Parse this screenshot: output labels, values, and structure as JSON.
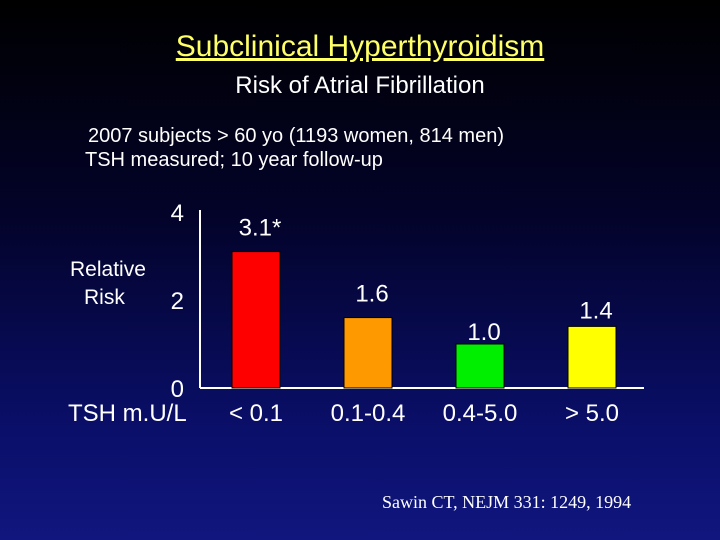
{
  "title": "Subclinical Hyperthyroidism",
  "subtitle": "Risk of Atrial Fibrillation",
  "description": [
    "2007 subjects > 60 yo (1193 women, 814 men)",
    "TSH measured; 10 year follow-up"
  ],
  "y_axis_label_lines": [
    "Relative",
    "Risk"
  ],
  "x_axis_label": "TSH m.U/L",
  "citation": "Sawin CT, NEJM 331: 1249, 1994",
  "chart_data": {
    "type": "bar",
    "title": "",
    "xlabel": "TSH m.U/L",
    "ylabel": "Relative Risk",
    "ylim": [
      0,
      4
    ],
    "yticks": [
      "0",
      "2",
      "4"
    ],
    "categories": [
      "< 0.1",
      "0.1-0.4",
      "0.4-5.0",
      "> 5.0"
    ],
    "values": [
      3.1,
      1.6,
      1.0,
      1.4
    ],
    "data_labels": [
      "3.1*",
      "1.6",
      "1.0",
      "1.4"
    ],
    "colors": [
      "#ff0000",
      "#ff9900",
      "#00ee00",
      "#ffff00"
    ],
    "grid": false,
    "legend": "none"
  }
}
